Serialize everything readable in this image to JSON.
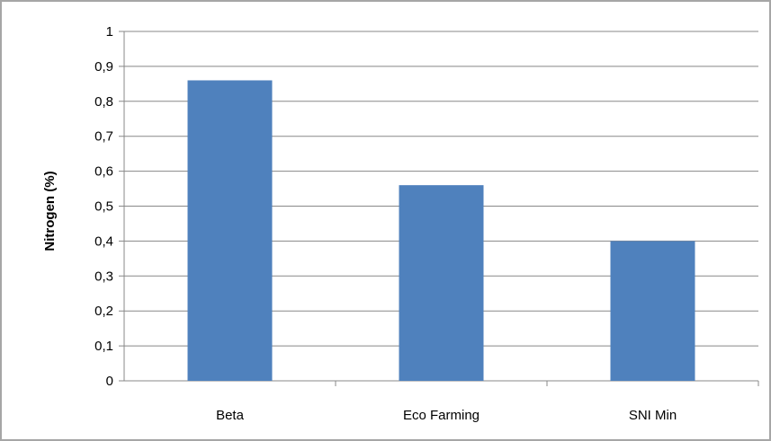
{
  "chart_data": {
    "type": "bar",
    "categories": [
      "Beta",
      "Eco Farming",
      "SNI Min"
    ],
    "values": [
      0.86,
      0.56,
      0.4
    ],
    "title": "",
    "xlabel": "",
    "ylabel": "Nitrogen (%)",
    "ylim": [
      0,
      1
    ],
    "yticks": [
      "0",
      "0,1",
      "0,2",
      "0,3",
      "0,4",
      "0,5",
      "0,6",
      "0,7",
      "0,8",
      "0,9",
      "1"
    ],
    "grid": true,
    "legend": "none",
    "colors": {
      "bar": "#4f81bd",
      "grid": "#888888",
      "border": "#a6a6a6"
    }
  }
}
